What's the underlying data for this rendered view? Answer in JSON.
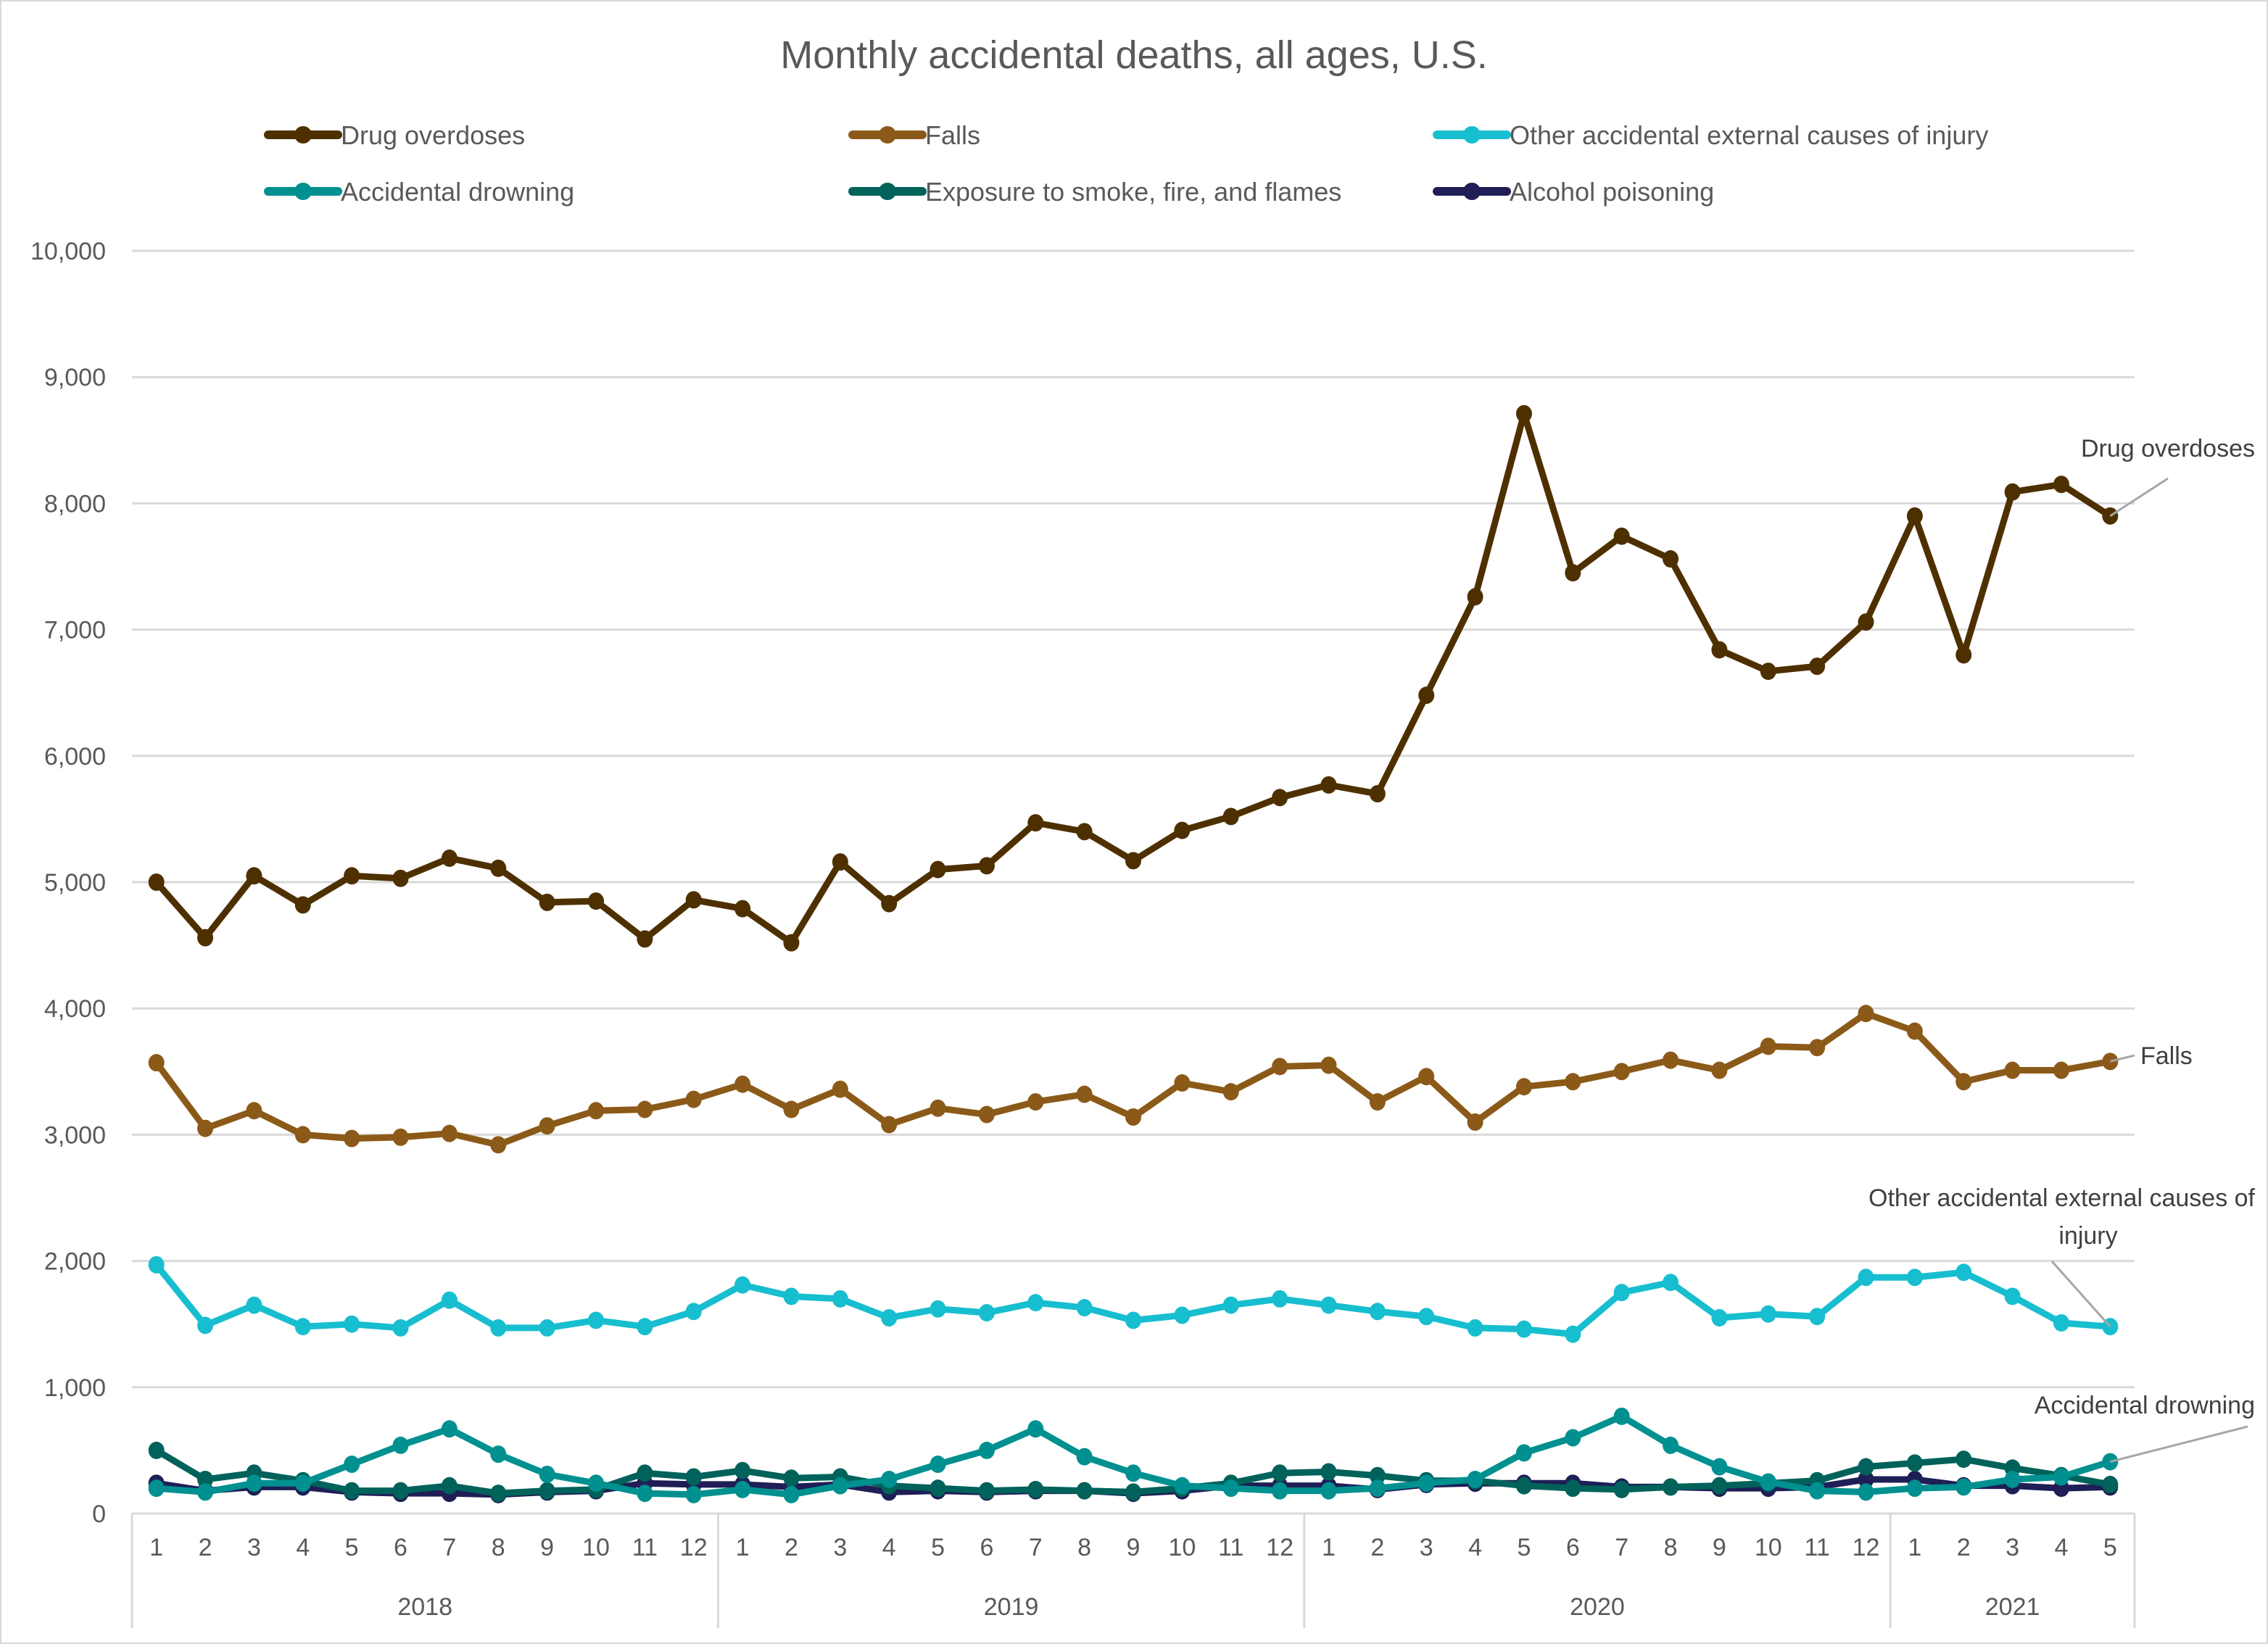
{
  "chart_data": {
    "type": "line",
    "title": "Monthly accidental deaths, all ages, U.S.",
    "xlabel": "",
    "ylabel": "",
    "ylim": [
      0,
      10000
    ],
    "yticks": [
      0,
      1000,
      2000,
      3000,
      4000,
      5000,
      6000,
      7000,
      8000,
      9000,
      10000
    ],
    "ytick_labels": [
      "0",
      "1,000",
      "2,000",
      "3,000",
      "4,000",
      "5,000",
      "6,000",
      "7,000",
      "8,000",
      "9,000",
      "10,000"
    ],
    "grid": true,
    "legend_position": "top",
    "x_groups": [
      {
        "label": "2018",
        "months": [
          "1",
          "2",
          "3",
          "4",
          "5",
          "6",
          "7",
          "8",
          "9",
          "10",
          "11",
          "12"
        ]
      },
      {
        "label": "2019",
        "months": [
          "1",
          "2",
          "3",
          "4",
          "5",
          "6",
          "7",
          "8",
          "9",
          "10",
          "11",
          "12"
        ]
      },
      {
        "label": "2020",
        "months": [
          "1",
          "2",
          "3",
          "4",
          "5",
          "6",
          "7",
          "8",
          "9",
          "10",
          "11",
          "12"
        ]
      },
      {
        "label": "2021",
        "months": [
          "1",
          "2",
          "3",
          "4",
          "5"
        ]
      }
    ],
    "series": [
      {
        "name": "Drug overdoses",
        "color": "#4e3000",
        "values": [
          5000,
          4560,
          5050,
          4820,
          5050,
          5030,
          5190,
          5110,
          4840,
          4850,
          4550,
          4860,
          4790,
          4520,
          5160,
          4830,
          5100,
          5130,
          5470,
          5400,
          5170,
          5410,
          5520,
          5670,
          5770,
          5700,
          6480,
          7260,
          8710,
          7450,
          7740,
          7560,
          6840,
          6670,
          6710,
          7060,
          7900,
          6800,
          8090,
          8150,
          7900
        ],
        "callout": "Drug overdoses"
      },
      {
        "name": "Falls",
        "color": "#8b5a18",
        "values": [
          3570,
          3050,
          3190,
          3000,
          2970,
          2980,
          3010,
          2920,
          3070,
          3190,
          3200,
          3280,
          3400,
          3200,
          3360,
          3080,
          3210,
          3160,
          3260,
          3320,
          3140,
          3410,
          3340,
          3540,
          3550,
          3260,
          3460,
          3100,
          3380,
          3420,
          3500,
          3590,
          3510,
          3700,
          3690,
          3960,
          3820,
          3420,
          3510,
          3510,
          3580
        ],
        "callout": "Falls"
      },
      {
        "name": "Other accidental external causes of injury",
        "color": "#17becf",
        "values": [
          1970,
          1490,
          1650,
          1480,
          1500,
          1470,
          1690,
          1470,
          1470,
          1530,
          1480,
          1600,
          1810,
          1720,
          1700,
          1550,
          1620,
          1590,
          1670,
          1630,
          1530,
          1570,
          1650,
          1700,
          1650,
          1600,
          1560,
          1470,
          1460,
          1420,
          1750,
          1830,
          1550,
          1580,
          1560,
          1870,
          1870,
          1910,
          1720,
          1510,
          1480
        ],
        "callout": "Other accidental external causes of injury"
      },
      {
        "name": "Accidental drowning",
        "color": "#009090",
        "values": [
          200,
          170,
          240,
          240,
          390,
          540,
          670,
          470,
          310,
          240,
          160,
          150,
          190,
          150,
          220,
          270,
          390,
          500,
          670,
          450,
          320,
          220,
          200,
          180,
          180,
          200,
          240,
          270,
          480,
          600,
          770,
          540,
          370,
          250,
          180,
          170,
          200,
          210,
          270,
          290,
          410
        ],
        "callout": "Accidental drowning"
      },
      {
        "name": "Exposure to smoke, fire, and flames",
        "color": "#00625a",
        "values": [
          500,
          270,
          320,
          260,
          180,
          180,
          220,
          160,
          180,
          190,
          320,
          290,
          340,
          280,
          290,
          220,
          200,
          180,
          190,
          180,
          170,
          200,
          240,
          320,
          330,
          300,
          260,
          260,
          220,
          200,
          190,
          210,
          220,
          240,
          260,
          370,
          400,
          430,
          360,
          300,
          230
        ],
        "callout": ""
      },
      {
        "name": "Alcohol poisoning",
        "color": "#1f1e56",
        "values": [
          240,
          180,
          210,
          210,
          170,
          160,
          160,
          150,
          170,
          180,
          240,
          230,
          230,
          210,
          230,
          170,
          180,
          170,
          180,
          180,
          160,
          180,
          220,
          220,
          220,
          190,
          230,
          240,
          240,
          240,
          210,
          210,
          200,
          200,
          210,
          270,
          270,
          220,
          220,
          200,
          210
        ],
        "callout": ""
      }
    ]
  }
}
